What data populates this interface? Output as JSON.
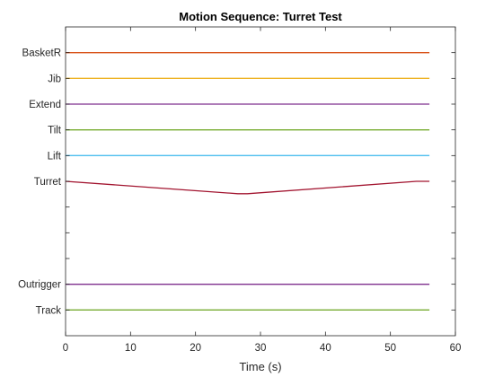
{
  "chart_data": {
    "type": "line",
    "title": "Motion Sequence: Turret Test",
    "xlabel": "Time (s)",
    "ylabel": "",
    "xlim": [
      0,
      60
    ],
    "xticks": [
      0,
      10,
      20,
      30,
      40,
      50,
      60
    ],
    "y_slots": 12,
    "grid": false,
    "y_tick_labels": [
      {
        "slot": 1,
        "label": "BasketR"
      },
      {
        "slot": 2,
        "label": "Jib"
      },
      {
        "slot": 3,
        "label": "Extend"
      },
      {
        "slot": 4,
        "label": "Tilt"
      },
      {
        "slot": 5,
        "label": "Lift"
      },
      {
        "slot": 6,
        "label": "Turret"
      },
      {
        "slot": 7,
        "label": ""
      },
      {
        "slot": 8,
        "label": ""
      },
      {
        "slot": 9,
        "label": ""
      },
      {
        "slot": 10,
        "label": "Outrigger"
      },
      {
        "slot": 11,
        "label": "Track"
      }
    ],
    "series": [
      {
        "name": "BasketR",
        "color": "#D95319",
        "x": [
          0,
          56
        ],
        "y": [
          1,
          1
        ]
      },
      {
        "name": "Jib",
        "color": "#EDB120",
        "x": [
          0,
          56
        ],
        "y": [
          2,
          2
        ]
      },
      {
        "name": "Extend",
        "color": "#7E2F8E",
        "x": [
          0,
          56
        ],
        "y": [
          3,
          3
        ]
      },
      {
        "name": "Tilt",
        "color": "#77AC30",
        "x": [
          0,
          56
        ],
        "y": [
          4,
          4
        ]
      },
      {
        "name": "Lift",
        "color": "#4DBEEE",
        "x": [
          0,
          56
        ],
        "y": [
          5,
          5
        ]
      },
      {
        "name": "Turret",
        "color": "#A2142F",
        "x": [
          0,
          26.5,
          28,
          54,
          56
        ],
        "y": [
          6,
          6.48,
          6.48,
          6,
          6
        ]
      },
      {
        "name": "Outrigger",
        "color": "#7E2F8E",
        "x": [
          0,
          56
        ],
        "y": [
          10,
          10
        ]
      },
      {
        "name": "Track",
        "color": "#77AC30",
        "x": [
          0,
          56
        ],
        "y": [
          11,
          11
        ]
      }
    ]
  }
}
